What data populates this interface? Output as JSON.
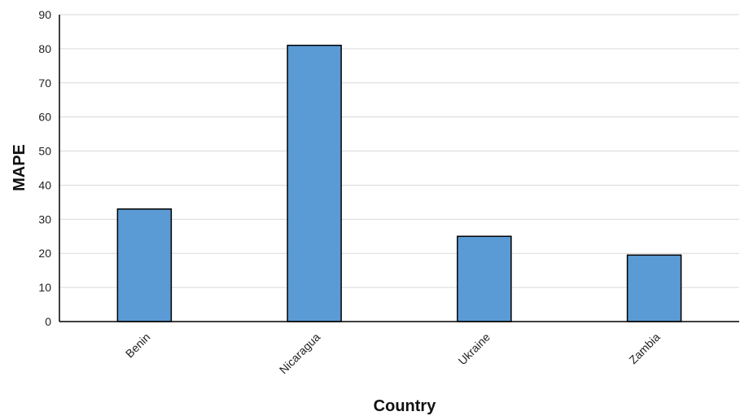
{
  "chart_data": {
    "type": "bar",
    "categories": [
      "Benin",
      "Nicaragua",
      "Ukraine",
      "Zambia"
    ],
    "values": [
      33,
      81,
      25,
      19.5
    ],
    "xlabel": "Country",
    "ylabel": "MAPE",
    "ylim": [
      0,
      90
    ],
    "yticks": [
      0,
      10,
      20,
      30,
      40,
      50,
      60,
      70,
      80,
      90
    ],
    "grid": true,
    "legend": "none",
    "colors": {
      "bar_fill": "#5b9bd5",
      "bar_stroke": "#000000",
      "grid": "#d9d9d9",
      "axis": "#000000"
    }
  }
}
